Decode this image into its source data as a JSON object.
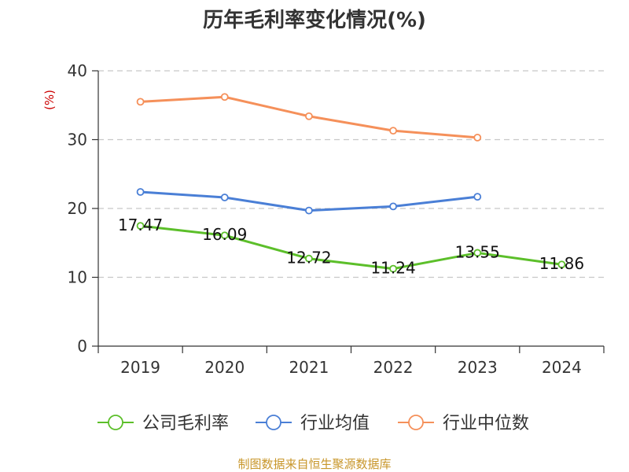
{
  "chart_data": {
    "type": "line",
    "title": "历年毛利率变化情况(%)",
    "ylabel": "(%)",
    "xlabel": "",
    "categories": [
      "2019",
      "2020",
      "2021",
      "2022",
      "2023",
      "2024"
    ],
    "yticks": [
      "0",
      "10",
      "20",
      "30",
      "40"
    ],
    "ylim": [
      0,
      40
    ],
    "grid": true,
    "legend_position": "bottom",
    "series": [
      {
        "name": "公司毛利率",
        "color": "#5cbf2a",
        "values": [
          17.47,
          16.09,
          12.72,
          11.24,
          13.55,
          11.86
        ],
        "labels": [
          "17.47",
          "16.09",
          "12.72",
          "11.24",
          "13.55",
          "11.86"
        ]
      },
      {
        "name": "行业均值",
        "color": "#4a7fd6",
        "values": [
          22.4,
          21.6,
          19.7,
          20.3,
          21.7,
          null
        ]
      },
      {
        "name": "行业中位数",
        "color": "#f5905a",
        "values": [
          35.5,
          36.2,
          33.4,
          31.3,
          30.3,
          null
        ]
      }
    ],
    "source": "制图数据来自恒生聚源数据库"
  }
}
